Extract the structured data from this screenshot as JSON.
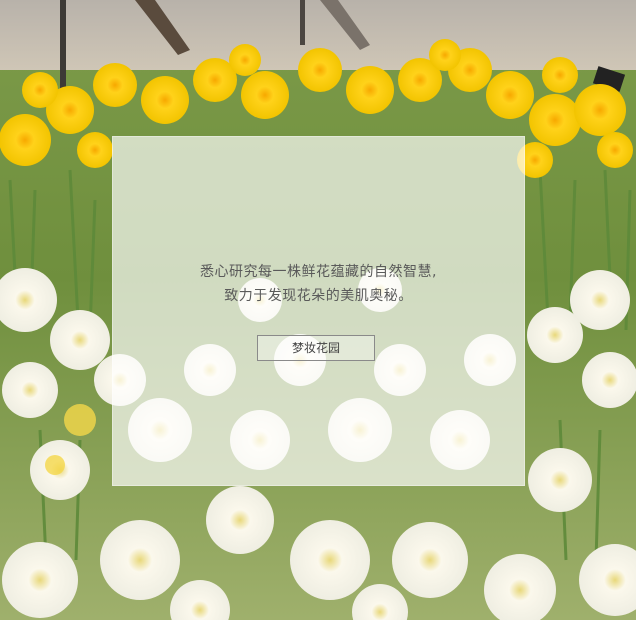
{
  "hero": {
    "background_description_icon": "daffodil-field-photo",
    "tagline_line1": "悉心研究每一株鲜花蕴藏的自然智慧,",
    "tagline_line2": "致力于发现花朵的美肌奥秘。",
    "cta_label": "梦妆花园"
  },
  "colors": {
    "panel_overlay": "#ffffff",
    "text": "#5a5a5a",
    "button_border": "#8a8a8a",
    "flower_yellow": "#f2c400",
    "flower_white": "#f7f5ea",
    "stem_green": "#5e8a3a"
  }
}
